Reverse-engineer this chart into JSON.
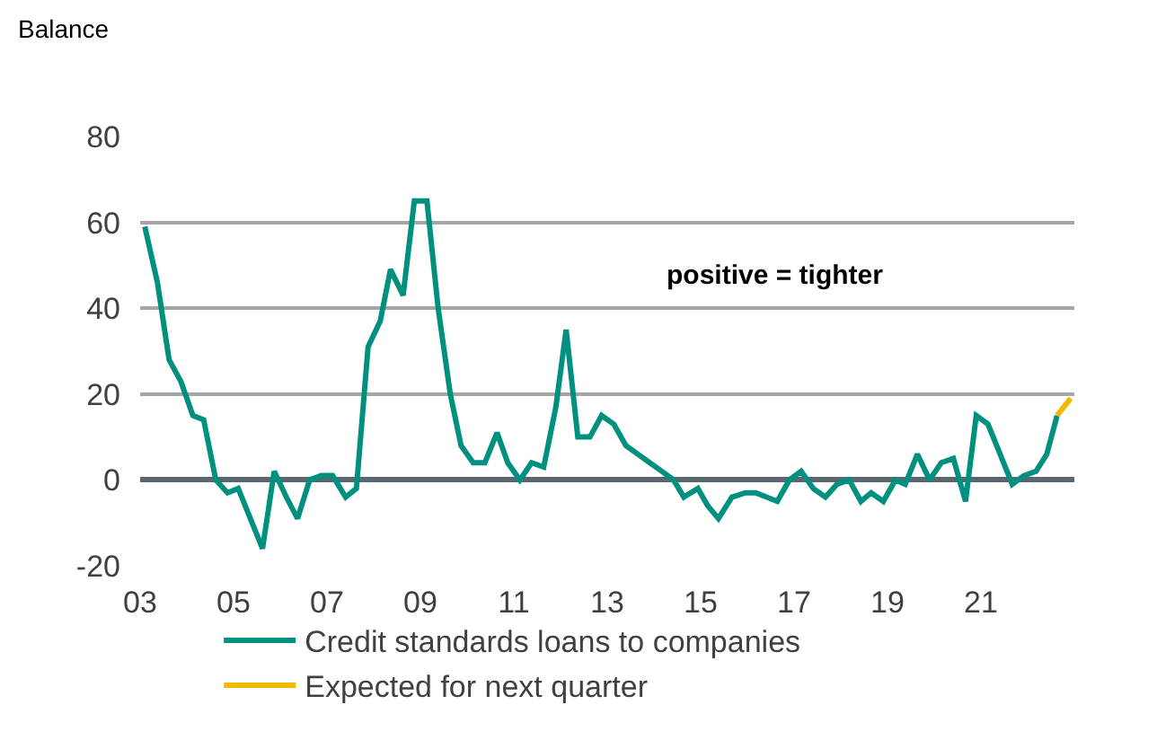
{
  "chart_data": {
    "type": "line",
    "ylabel": "Balance",
    "xlim": [
      2003,
      2023
    ],
    "xticks": [
      {
        "value": 2003,
        "label": "03"
      },
      {
        "value": 2005,
        "label": "05"
      },
      {
        "value": 2007,
        "label": "07"
      },
      {
        "value": 2009,
        "label": "09"
      },
      {
        "value": 2011,
        "label": "11"
      },
      {
        "value": 2013,
        "label": "13"
      },
      {
        "value": 2015,
        "label": "15"
      },
      {
        "value": 2017,
        "label": "17"
      },
      {
        "value": 2019,
        "label": "19"
      },
      {
        "value": 2021,
        "label": "21"
      }
    ],
    "ylim": [
      -20,
      80
    ],
    "yticks": [
      -20,
      0,
      20,
      40,
      60,
      80
    ],
    "grid": "y",
    "legend": "bottom",
    "line_style": "solid",
    "marker": "none",
    "annotations": [
      "positive = tighter"
    ],
    "series": [
      {
        "name": "Credit standards loans to companies",
        "color": "#009080",
        "x": [
          2003.1,
          2003.37,
          2003.62,
          2003.87,
          2004.13,
          2004.36,
          2004.62,
          2004.87,
          2005.1,
          2005.36,
          2005.62,
          2005.87,
          2006.13,
          2006.37,
          2006.63,
          2006.88,
          2007.12,
          2007.4,
          2007.63,
          2007.88,
          2008.14,
          2008.36,
          2008.63,
          2008.87,
          2009.14,
          2009.38,
          2009.64,
          2009.87,
          2010.13,
          2010.38,
          2010.64,
          2010.87,
          2011.13,
          2011.38,
          2011.64,
          2011.9,
          2012.12,
          2012.37,
          2012.63,
          2012.88,
          2013.14,
          2013.4,
          2013.91,
          2014.17,
          2014.42,
          2014.64,
          2014.94,
          2015.15,
          2015.38,
          2015.67,
          2015.96,
          2016.18,
          2016.41,
          2016.64,
          2016.9,
          2017.15,
          2017.41,
          2017.67,
          2017.92,
          2018.18,
          2018.43,
          2018.65,
          2018.91,
          2019.17,
          2019.38,
          2019.64,
          2019.9,
          2020.15,
          2020.41,
          2020.67,
          2020.9,
          2021.15,
          2021.41,
          2021.67,
          2021.92,
          2022.18,
          2022.41,
          2022.63
        ],
        "values": [
          59,
          46,
          28,
          23,
          15,
          14,
          0,
          -3,
          -2,
          -9,
          -16,
          2,
          -4,
          -9,
          0,
          1,
          1,
          -4,
          -2,
          31,
          37,
          49,
          43,
          65,
          65,
          40,
          20,
          8,
          4,
          4,
          11,
          4,
          0,
          4,
          3,
          17,
          35,
          10,
          10,
          15,
          13,
          8,
          4,
          2,
          0,
          -4,
          -2,
          -6,
          -9,
          -4,
          -3,
          -3,
          -4,
          -5,
          0,
          2,
          -2,
          -4,
          -1,
          0,
          -5,
          -3,
          -5,
          0,
          -1,
          6,
          0,
          4,
          5,
          -5,
          15,
          13,
          6,
          -1,
          1,
          2,
          6,
          15
        ]
      },
      {
        "name": "Expected for next quarter",
        "color": "#f2b800",
        "x": [
          2022.63,
          2022.92
        ],
        "values": [
          15,
          19
        ]
      }
    ]
  }
}
